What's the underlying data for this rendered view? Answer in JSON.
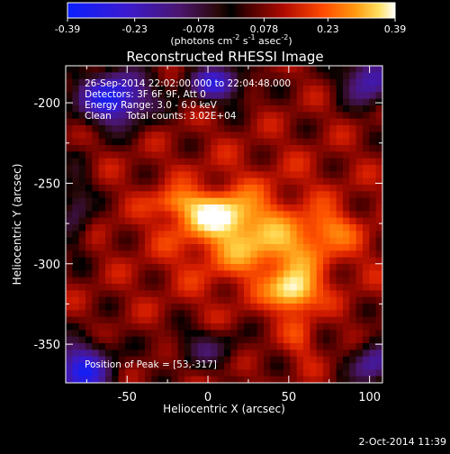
{
  "chart_data": {
    "type": "heatmap",
    "title": "Reconstructed RHESSI Image",
    "xlabel": "Heliocentric X (arcsec)",
    "ylabel": "Heliocentric Y (arcsec)",
    "xlim": [
      -88,
      108
    ],
    "ylim": [
      -374,
      -177
    ],
    "xticks": [
      -50,
      0,
      50,
      100
    ],
    "yticks": [
      -200,
      -250,
      -300,
      -350
    ],
    "colorbar": {
      "tick_labels": [
        "-0.39",
        "-0.23",
        "-0.078",
        "0.078",
        "0.23",
        "0.39"
      ],
      "tick_values": [
        -0.39,
        -0.23,
        -0.078,
        0.078,
        0.23,
        0.39
      ],
      "range": [
        -0.39,
        0.39
      ],
      "unit_base": "(photons cm",
      "unit_exp1": "-2",
      "unit_mid": " s",
      "unit_exp2": "-1",
      "unit_end": " asec",
      "unit_exp3": "-2",
      "unit_close": ")"
    },
    "annotations": [
      "26-Sep-2014 22:02:00.000 to 22:04:48.000",
      "Detectors: 3F 6F 9F, Att 0",
      "Energy Range: 3.0 - 6.0 keV",
      "Clean     Total counts: 3.02E+04"
    ],
    "peak_label": "Position of Peak = [53,-317]",
    "peak": [
      53,
      -317
    ],
    "grid": false,
    "colormap": "blue-purple-red-orange-yellow-white"
  },
  "footer": {
    "timestamp": "2-Oct-2014 11:39"
  }
}
